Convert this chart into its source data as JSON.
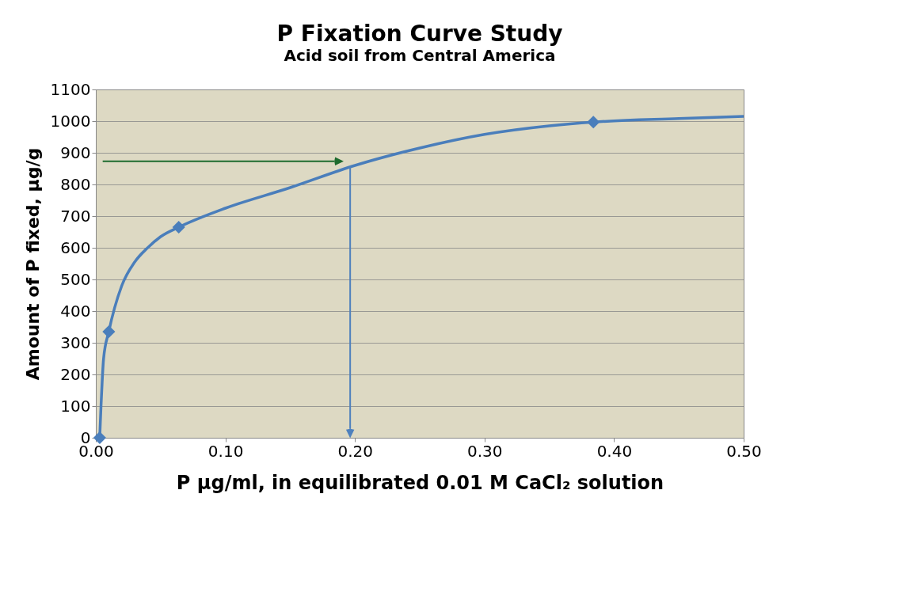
{
  "chart_data": {
    "type": "scatter",
    "title": "P Fixation Curve Study",
    "subtitle": "Acid soil from Central America",
    "xlabel": "P µg/ml, in equilibrated 0.01 M CaCl₂ solution",
    "ylabel": "Amount of P fixed, µg/g",
    "xlim": [
      0,
      0.5
    ],
    "xticks": [
      {
        "value": 0,
        "label": "0.00"
      },
      {
        "value": 0.1,
        "label": "0.10"
      },
      {
        "value": 0.2,
        "label": "0.20"
      },
      {
        "value": 0.3,
        "label": "0.30"
      },
      {
        "value": 0.4,
        "label": "0.40"
      },
      {
        "value": 0.5,
        "label": "0.50"
      }
    ],
    "ylim": [
      0,
      1100
    ],
    "yticks": [
      0,
      100,
      200,
      300,
      400,
      500,
      600,
      700,
      800,
      900,
      1000,
      1100
    ],
    "grid": "y",
    "series": [
      {
        "color": "#4a7ebb",
        "marker": "diamond",
        "x": [
          0.003,
          0.01,
          0.064,
          0.384
        ],
        "values": [
          0,
          335,
          665,
          997
        ]
      },
      {
        "type": "line",
        "color": "#4a7ebb",
        "marker": "none",
        "x": [
          0.003,
          0.004,
          0.006,
          0.01,
          0.02,
          0.03,
          0.04,
          0.05,
          0.064,
          0.1,
          0.15,
          0.2,
          0.25,
          0.3,
          0.35,
          0.384,
          0.45,
          0.5
        ],
        "values": [
          0,
          100,
          250,
          335,
          480,
          555,
          600,
          635,
          665,
          725,
          790,
          860,
          915,
          958,
          985,
          997,
          1008,
          1015
        ]
      }
    ]
  }
}
